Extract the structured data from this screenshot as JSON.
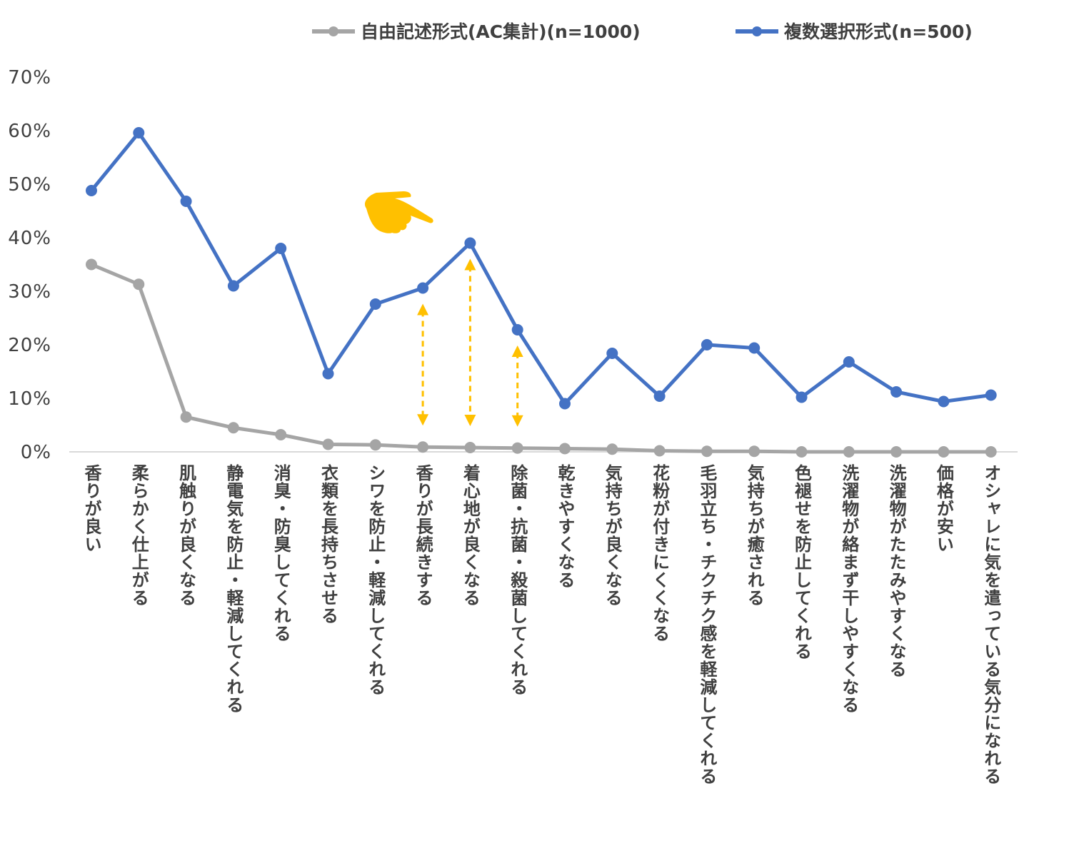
{
  "colors": {
    "series_free": "#A5A5A5",
    "series_multi": "#4472C4",
    "annotation": "#FFC000",
    "axis": "#D9D9D9"
  },
  "legend_position": "top-right",
  "annotations": {
    "hand_icon": "pointing-hand-icon",
    "arrow_icon": "double-headed-dashed-arrow-icon",
    "arrows_at_categories": [
      "香りが長続きする",
      "着心地が良くなる",
      "除菌・抗菌・殺菌してくれる"
    ]
  },
  "chart_data": {
    "type": "line",
    "title": "",
    "xlabel": "",
    "ylabel": "",
    "ylim": [
      0,
      0.7
    ],
    "yticks": [
      0,
      0.1,
      0.2,
      0.3,
      0.4,
      0.5,
      0.6,
      0.7
    ],
    "ytick_labels": [
      "0%",
      "10%",
      "20%",
      "30%",
      "40%",
      "50%",
      "60%",
      "70%"
    ],
    "grid": false,
    "categories": [
      "香りが良い",
      "柔らかく仕上がる",
      "肌触りが良くなる",
      "静電気を防止・軽減してくれる",
      "消臭・防臭してくれる",
      "衣類を長持ちさせる",
      "シワを防止・軽減してくれる",
      "香りが長続きする",
      "着心地が良くなる",
      "除菌・抗菌・殺菌してくれる",
      "乾きやすくなる",
      "気持ちが良くなる",
      "花粉が付きにくくなる",
      "毛羽立ち・チクチク感を軽減してくれる",
      "気持ちが癒される",
      "色褪せを防止してくれる",
      "洗濯物が絡まず干しやすくなる",
      "洗濯物がたたみやすくなる",
      "価格が安い",
      "オシャレに気を遣っている気分になれる"
    ],
    "series": [
      {
        "name": "自由記述形式(AC集計)(n=1000)",
        "color": "#A5A5A5",
        "values": [
          0.35,
          0.313,
          0.065,
          0.045,
          0.032,
          0.014,
          0.013,
          0.009,
          0.008,
          0.007,
          0.006,
          0.005,
          0.002,
          0.001,
          0.001,
          0.0,
          0.0,
          0.0,
          0.0,
          0.0
        ]
      },
      {
        "name": "複数選択形式(n=500)",
        "color": "#4472C4",
        "values": [
          0.488,
          0.596,
          0.468,
          0.31,
          0.38,
          0.146,
          0.276,
          0.306,
          0.39,
          0.228,
          0.09,
          0.184,
          0.104,
          0.2,
          0.194,
          0.102,
          0.168,
          0.112,
          0.094,
          0.106
        ]
      }
    ]
  }
}
